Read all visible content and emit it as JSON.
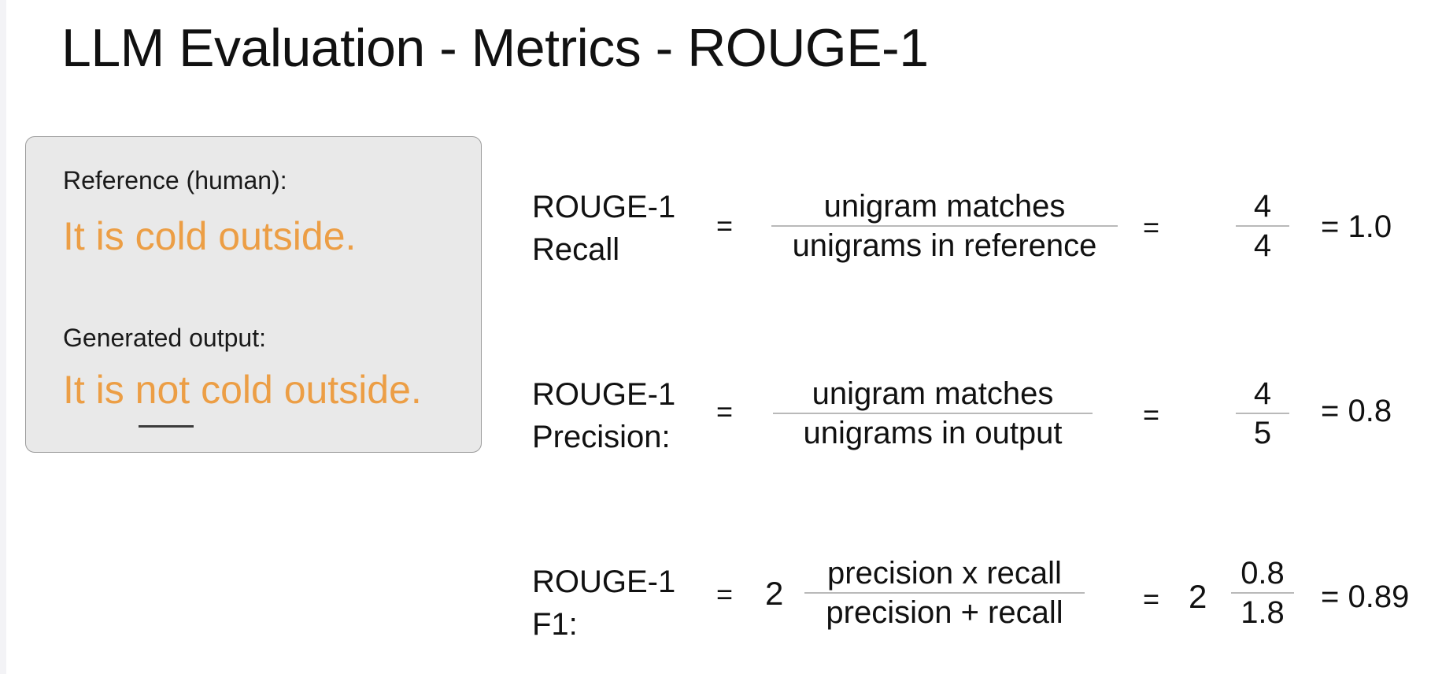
{
  "title": "LLM Evaluation - Metrics - ROUGE-1",
  "example": {
    "reference_label": "Reference (human):",
    "reference_text": "It is cold outside.",
    "generated_label": "Generated output:",
    "generated_text": "It is not cold outside."
  },
  "formulas": [
    {
      "name_line1": "ROUGE-1",
      "name_line2": "Recall",
      "equals": "=",
      "numerator": "unigram matches",
      "denominator": "unigrams in reference",
      "equals2": "=",
      "value_numerator": "4",
      "value_denominator": "4",
      "result": "= 1.0"
    },
    {
      "name_line1": "ROUGE-1",
      "name_line2": "Precision:",
      "equals": "=",
      "numerator": "unigram matches",
      "denominator": "unigrams in output",
      "equals2": "=",
      "value_numerator": "4",
      "value_denominator": "5",
      "result": "= 0.8"
    },
    {
      "name_line1": "ROUGE-1",
      "name_line2": "F1:",
      "equals": "=",
      "coefficient": "2",
      "numerator": "precision x recall",
      "denominator": "precision + recall",
      "equals2": "=",
      "coefficient2": "2",
      "value_numerator": "0.8",
      "value_denominator": "1.8",
      "result": "= 0.89"
    }
  ],
  "colors": {
    "highlight_text": "#ec9e45",
    "box_background": "#e9e9e9",
    "box_border": "#9c9c9c"
  }
}
